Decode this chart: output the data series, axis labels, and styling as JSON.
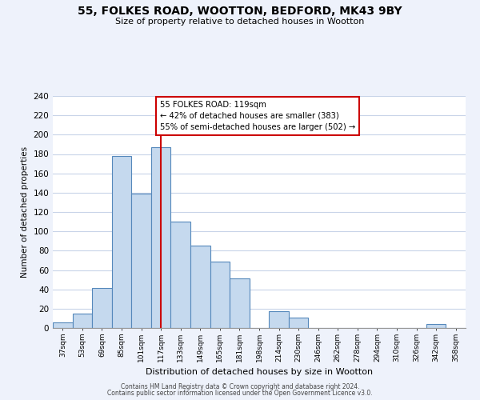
{
  "title": "55, FOLKES ROAD, WOOTTON, BEDFORD, MK43 9BY",
  "subtitle": "Size of property relative to detached houses in Wootton",
  "xlabel": "Distribution of detached houses by size in Wootton",
  "ylabel": "Number of detached properties",
  "bar_color": "#c5d9ee",
  "bar_edge_color": "#5588bb",
  "bin_labels": [
    "37sqm",
    "53sqm",
    "69sqm",
    "85sqm",
    "101sqm",
    "117sqm",
    "133sqm",
    "149sqm",
    "165sqm",
    "181sqm",
    "198sqm",
    "214sqm",
    "230sqm",
    "246sqm",
    "262sqm",
    "278sqm",
    "294sqm",
    "310sqm",
    "326sqm",
    "342sqm",
    "358sqm"
  ],
  "bar_heights": [
    6,
    15,
    41,
    178,
    139,
    187,
    110,
    85,
    69,
    51,
    0,
    17,
    11,
    0,
    0,
    0,
    0,
    0,
    0,
    4,
    0
  ],
  "ylim": [
    0,
    240
  ],
  "yticks": [
    0,
    20,
    40,
    60,
    80,
    100,
    120,
    140,
    160,
    180,
    200,
    220,
    240
  ],
  "vline_pos": 5.5,
  "property_line_label": "55 FOLKES ROAD: 119sqm",
  "annotation_line1": "← 42% of detached houses are smaller (383)",
  "annotation_line2": "55% of semi-detached houses are larger (502) →",
  "vline_color": "#cc0000",
  "annotation_box_edge": "#cc0000",
  "footer1": "Contains HM Land Registry data © Crown copyright and database right 2024.",
  "footer2": "Contains public sector information licensed under the Open Government Licence v3.0.",
  "background_color": "#eef2fb",
  "plot_background": "#ffffff",
  "grid_color": "#c8d4e8"
}
